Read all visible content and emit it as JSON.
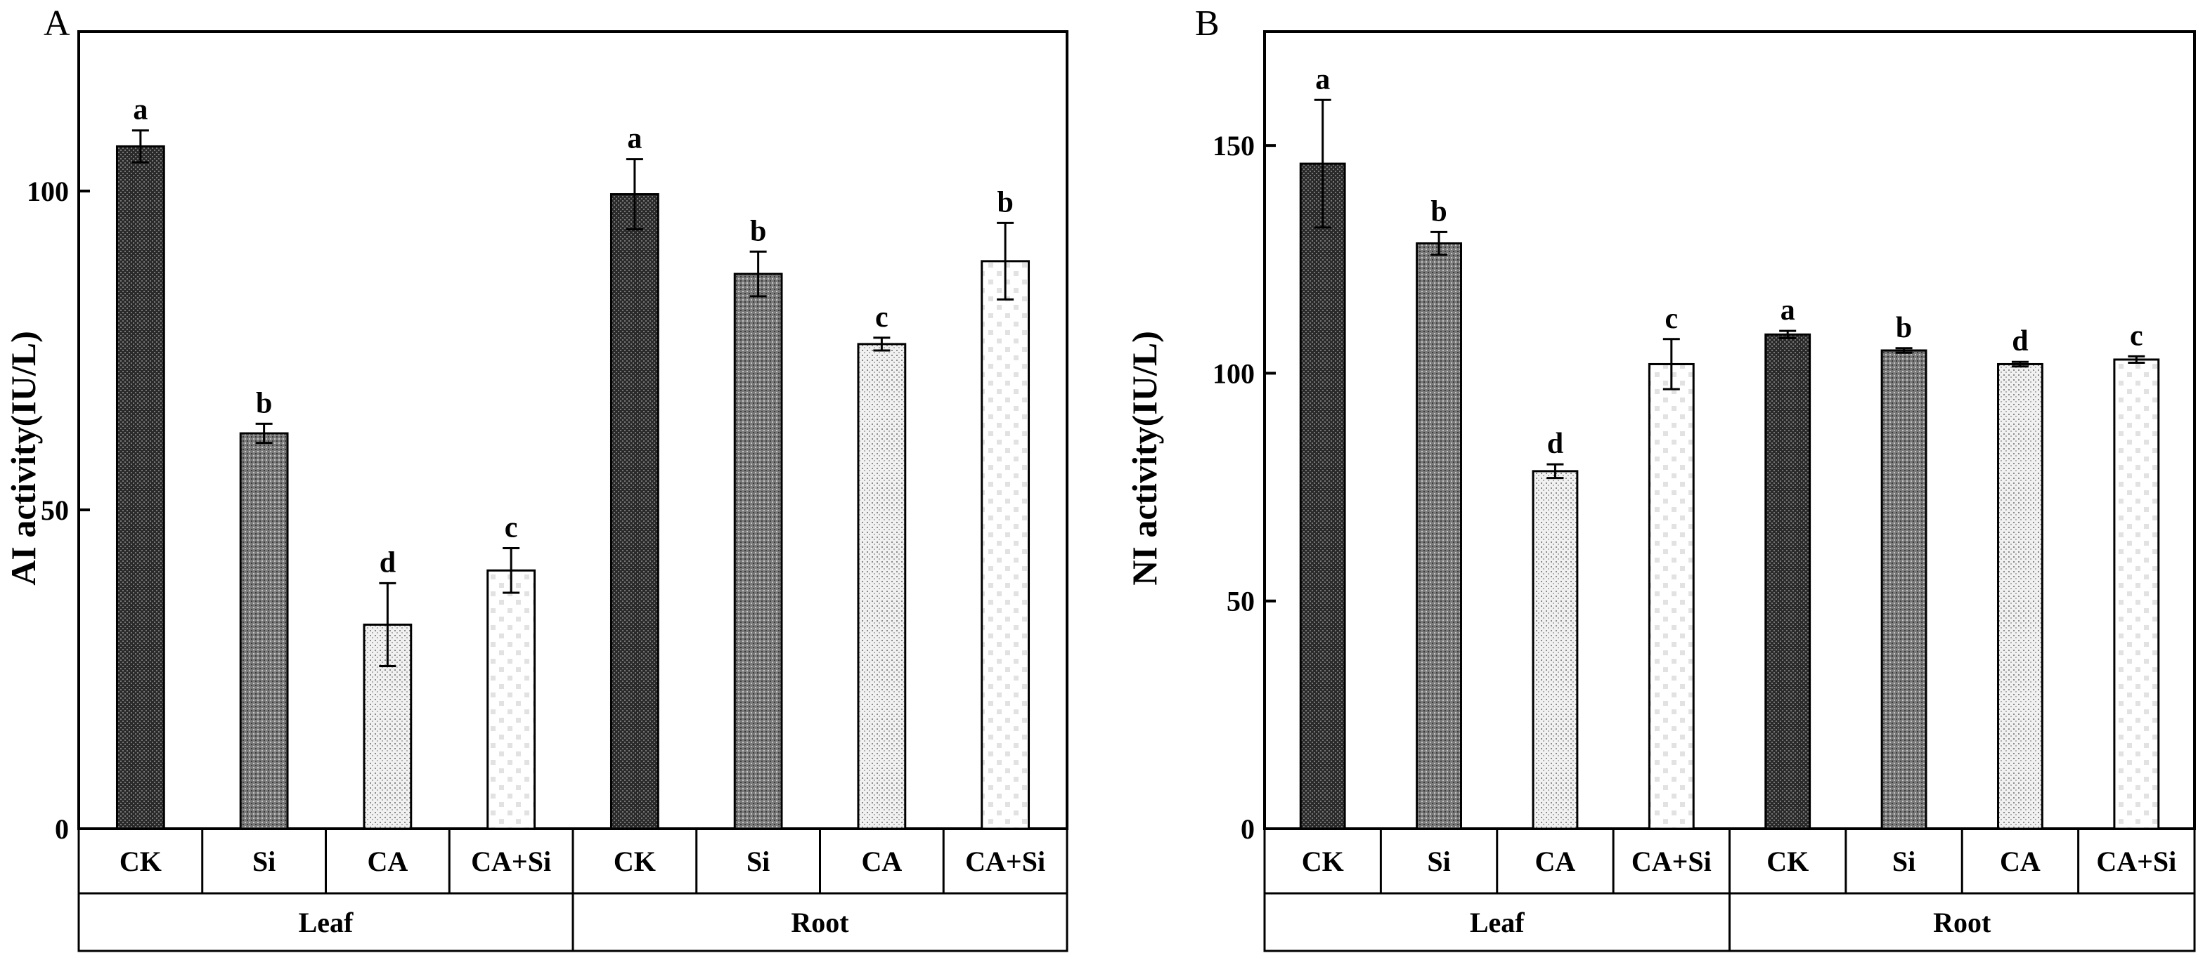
{
  "chart_data": [
    {
      "type": "bar",
      "panel": "A",
      "ylabel": "AI activity(IU/L)",
      "ylim": [
        0,
        125
      ],
      "yticks": [
        0,
        50,
        100
      ],
      "groups": [
        "Leaf",
        "Root"
      ],
      "categories": [
        "CK",
        "Si",
        "CA",
        "CA+Si",
        "CK",
        "Si",
        "CA",
        "CA+Si"
      ],
      "values": [
        107,
        62,
        32,
        40.5,
        99.5,
        87,
        76,
        89
      ],
      "errors": [
        2.5,
        1.5,
        6.5,
        3.5,
        5.5,
        3.5,
        1.0,
        6.0
      ],
      "significance": [
        "a",
        "b",
        "d",
        "c",
        "a",
        "b",
        "c",
        "b"
      ],
      "fills": [
        "dark",
        "mid",
        "light",
        "dots",
        "dark",
        "mid",
        "light",
        "dots"
      ]
    },
    {
      "type": "bar",
      "panel": "B",
      "ylabel": "NI activity(IU/L)",
      "ylim": [
        0,
        175
      ],
      "yticks": [
        0,
        50,
        100,
        150
      ],
      "groups": [
        "Leaf",
        "Root"
      ],
      "categories": [
        "CK",
        "Si",
        "CA",
        "CA+Si",
        "CK",
        "Si",
        "CA",
        "CA+Si"
      ],
      "values": [
        146,
        128.5,
        78.5,
        102,
        108.5,
        105,
        102,
        103
      ],
      "errors": [
        14,
        2.5,
        1.5,
        5.5,
        0.8,
        0.5,
        0.5,
        0.7
      ],
      "significance": [
        "a",
        "b",
        "d",
        "c",
        "a",
        "b",
        "d",
        "c"
      ],
      "fills": [
        "dark",
        "mid",
        "light",
        "dots",
        "dark",
        "mid",
        "light",
        "dots"
      ]
    }
  ]
}
